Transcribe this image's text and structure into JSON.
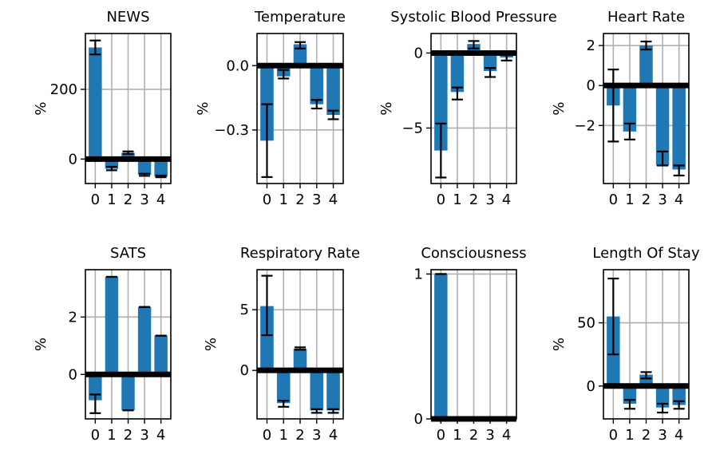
{
  "chart_data": [
    {
      "type": "bar",
      "title": "NEWS",
      "ylabel": "%",
      "categories": [
        "0",
        "1",
        "2",
        "3",
        "4"
      ],
      "values": [
        320,
        -28,
        18,
        -45,
        -50
      ],
      "err_low": [
        300,
        -32,
        15,
        -48,
        -52
      ],
      "err_high": [
        340,
        -22,
        22,
        -42,
        -47
      ],
      "ylim": [
        -70,
        360
      ],
      "yticks": [
        0,
        200
      ],
      "ytick_labels": [
        "0",
        "200"
      ],
      "xticks": [
        0,
        1,
        2,
        3,
        4
      ],
      "grid": true
    },
    {
      "type": "bar",
      "title": "Temperature",
      "ylabel": "%",
      "categories": [
        "0",
        "1",
        "2",
        "3",
        "4"
      ],
      "values": [
        -0.35,
        -0.05,
        0.1,
        -0.18,
        -0.23
      ],
      "err_low": [
        -0.52,
        -0.06,
        0.08,
        -0.2,
        -0.25
      ],
      "err_high": [
        -0.18,
        -0.02,
        0.11,
        -0.16,
        -0.21
      ],
      "ylim": [
        -0.55,
        0.15
      ],
      "yticks": [
        0.0,
        -0.3
      ],
      "ytick_labels": [
        "0.0",
        "−0.3"
      ],
      "xticks": [
        0,
        1,
        2,
        3,
        4
      ],
      "grid": true
    },
    {
      "type": "bar",
      "title": "Systolic Blood Pressure",
      "ylabel": "%",
      "categories": [
        "0",
        "1",
        "2",
        "3",
        "4"
      ],
      "values": [
        -6.5,
        -2.6,
        0.6,
        -1.2,
        -0.3
      ],
      "err_low": [
        -8.3,
        -3.1,
        0.3,
        -1.6,
        -0.5
      ],
      "err_high": [
        -4.7,
        -2.3,
        0.8,
        -1.0,
        -0.1
      ],
      "ylim": [
        -8.7,
        1.3
      ],
      "yticks": [
        0,
        -5
      ],
      "ytick_labels": [
        "0",
        "−5"
      ],
      "xticks": [
        0,
        1,
        2,
        3,
        4
      ],
      "grid": true
    },
    {
      "type": "bar",
      "title": "Heart Rate",
      "ylabel": "%",
      "categories": [
        "0",
        "1",
        "2",
        "3",
        "4"
      ],
      "values": [
        -1.0,
        -2.3,
        2.0,
        -4.0,
        -4.2
      ],
      "err_low": [
        -2.8,
        -2.7,
        1.8,
        -4.0,
        -4.5
      ],
      "err_high": [
        0.8,
        -1.9,
        2.2,
        -3.3,
        -4.0
      ],
      "ylim": [
        -4.9,
        2.6
      ],
      "yticks": [
        2,
        0,
        -2
      ],
      "ytick_labels": [
        "2",
        "0",
        "−2"
      ],
      "xticks": [
        0,
        1,
        2,
        3,
        4
      ],
      "grid": true
    },
    {
      "type": "bar",
      "title": "SATS",
      "ylabel": "%",
      "categories": [
        "0",
        "1",
        "2",
        "3",
        "4"
      ],
      "values": [
        -0.9,
        3.4,
        -1.25,
        2.35,
        1.35
      ],
      "err_low": [
        -1.35,
        3.4,
        -1.25,
        2.35,
        1.35
      ],
      "err_high": [
        -0.7,
        3.4,
        -1.25,
        2.35,
        1.35
      ],
      "ylim": [
        -1.55,
        3.65
      ],
      "yticks": [
        2,
        0
      ],
      "ytick_labels": [
        "2",
        "0"
      ],
      "xticks": [
        0,
        1,
        2,
        3,
        4
      ],
      "grid": true
    },
    {
      "type": "bar",
      "title": "Respiratory Rate",
      "ylabel": "%",
      "categories": [
        "0",
        "1",
        "2",
        "3",
        "4"
      ],
      "values": [
        5.3,
        -2.7,
        1.8,
        -3.3,
        -3.3
      ],
      "err_low": [
        2.9,
        -3.0,
        1.7,
        -3.5,
        -3.5
      ],
      "err_high": [
        7.8,
        -2.5,
        1.9,
        -3.2,
        -3.2
      ],
      "ylim": [
        -4.0,
        8.3
      ],
      "yticks": [
        5,
        0
      ],
      "ytick_labels": [
        "5",
        "0"
      ],
      "xticks": [
        0,
        1,
        2,
        3,
        4
      ],
      "grid": true
    },
    {
      "type": "bar",
      "title": "Consciousness",
      "ylabel": "",
      "categories": [
        "0",
        "1",
        "2",
        "3",
        "4"
      ],
      "values": [
        1.0,
        0,
        0,
        0,
        0
      ],
      "err_low": [
        1.0,
        0,
        0,
        0,
        0
      ],
      "err_high": [
        1.0,
        0,
        0,
        0,
        0
      ],
      "ylim": [
        0,
        1.03
      ],
      "yticks": [
        1,
        0
      ],
      "ytick_labels": [
        "1",
        "0"
      ],
      "xticks": [
        0,
        1,
        2,
        3,
        4
      ],
      "grid": true
    },
    {
      "type": "bar",
      "title": "Length Of Stay",
      "ylabel": "%",
      "categories": [
        "0",
        "1",
        "2",
        "3",
        "4"
      ],
      "values": [
        55,
        -14,
        9,
        -17,
        -15
      ],
      "err_low": [
        25,
        -18,
        6,
        -21,
        -18
      ],
      "err_high": [
        85,
        -11,
        11,
        -14,
        -12
      ],
      "ylim": [
        -26,
        92
      ],
      "yticks": [
        50,
        0
      ],
      "ytick_labels": [
        "50",
        "0"
      ],
      "xticks": [
        0,
        1,
        2,
        3,
        4
      ],
      "grid": true
    }
  ],
  "style": {
    "bar_color": "#1f77b4",
    "grid_color": "#b0b0b0",
    "axis_color": "#000000",
    "zero_line_color": "#000000"
  }
}
